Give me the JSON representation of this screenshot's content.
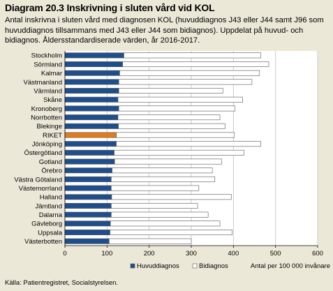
{
  "header": {
    "title": "Diagram 20.3 Inskrivning i sluten vård vid KOL",
    "subtitle": "Antal inskrivna i sluten vård med diagnosen KOL (huvuddiagnos J43 eller J44 samt J96 som huvuddiagnos tillsammans med J43 eller J44 som bidiagnos). Uppdelat på huvud- och bidiagnos. Åldersstandardiserade värden, år 2016-2017."
  },
  "footer": {
    "source": "Källa: Patientregistret, Socialstyrelsen."
  },
  "colors": {
    "background": "#ece8d8",
    "plot_background": "#ffffff",
    "huvuddiagnos": "#1f4e8c",
    "bidiagnos": "#ffffff",
    "highlight_huvuddiagnos": "#e07b1f",
    "highlight_bidiagnos": "#ffffff",
    "bar_border": "#555555",
    "grid": "#bfbfbf"
  },
  "chart_data": {
    "type": "bar",
    "orientation": "horizontal",
    "stacked": true,
    "categories": [
      "Stockholm",
      "Sörmland",
      "Kalmar",
      "Västmanland",
      "Värmland",
      "Skåne",
      "Kronoberg",
      "Norrbotten",
      "Blekinge",
      "RIKET",
      "Jönköping",
      "Östergötland",
      "Gotland",
      "Örebro",
      "Västra Götaland",
      "Västernorrland",
      "Halland",
      "Jämtland",
      "Dalarna",
      "Gävleborg",
      "Uppsala",
      "Västerbotten"
    ],
    "highlight_category": "RIKET",
    "series": [
      {
        "name": "Huvuddiagnos",
        "values": [
          140,
          137,
          130,
          128,
          128,
          126,
          128,
          126,
          127,
          122,
          122,
          117,
          118,
          112,
          110,
          110,
          111,
          110,
          110,
          108,
          107,
          105
        ]
      },
      {
        "name": "Bidiagnos",
        "values": [
          325,
          347,
          332,
          316,
          247,
          296,
          276,
          242,
          253,
          280,
          343,
          308,
          254,
          238,
          246,
          208,
          284,
          205,
          230,
          260,
          290,
          195
        ]
      }
    ],
    "xlabel": "Antal per 100 000 invånare",
    "xlim": [
      0,
      600
    ],
    "xticks": [
      0,
      100,
      200,
      300,
      400,
      500,
      600
    ],
    "grid": true,
    "legend_position": "bottom-left"
  }
}
